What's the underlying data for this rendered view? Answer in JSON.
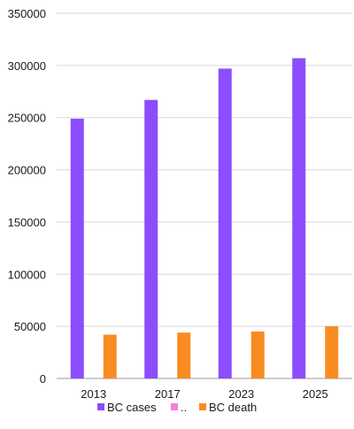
{
  "chart_data": {
    "type": "bar",
    "categories": [
      "2013",
      "2017",
      "2023",
      "2025"
    ],
    "series": [
      {
        "name": "BC cases",
        "values": [
          249000,
          267000,
          297000,
          307000
        ],
        "color": "#8b4dfd"
      },
      {
        "name": "..",
        "values": [
          0,
          0,
          0,
          0
        ],
        "color": "#f57fd6"
      },
      {
        "name": "BC death",
        "values": [
          42000,
          44000,
          45000,
          50000
        ],
        "color": "#f98c20"
      }
    ],
    "ylim": [
      0,
      350000
    ],
    "yticks": [
      0,
      50000,
      100000,
      150000,
      200000,
      250000,
      300000,
      350000
    ],
    "grid": true,
    "legend_position": "bottom"
  }
}
